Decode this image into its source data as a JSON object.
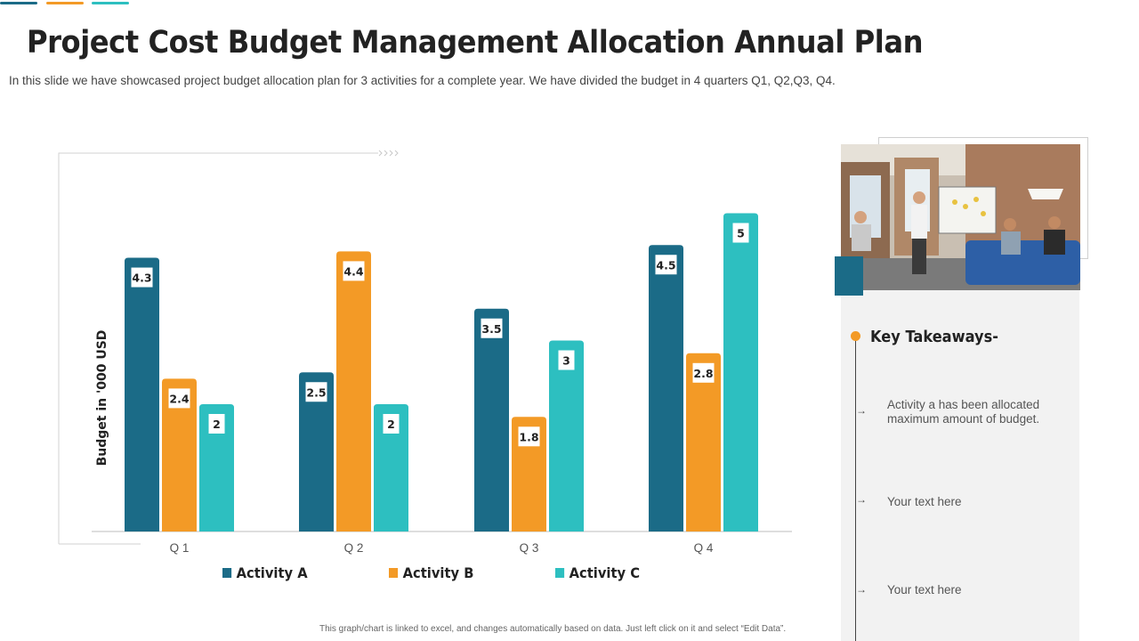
{
  "header": {
    "title": "Project Cost Budget Management Allocation Annual Plan",
    "subtitle": "In this slide we have showcased project budget allocation plan for 3 activities for a complete year. We have divided the budget in 4 quarters Q1, Q2,Q3, Q4."
  },
  "colors": {
    "activity_a": "#1b6b87",
    "activity_b": "#f39a26",
    "activity_c": "#2dbfc0",
    "accent": "#f39a26"
  },
  "chart_data": {
    "type": "bar",
    "title": "",
    "xlabel": "",
    "ylabel": "Budget in '000 USD",
    "ylim": [
      0,
      6
    ],
    "grid": false,
    "legend": "bottom",
    "categories": [
      "Q 1",
      "Q 2",
      "Q 3",
      "Q 4"
    ],
    "series": [
      {
        "name": "Activity A",
        "values": [
          4.3,
          2.5,
          3.5,
          4.5
        ]
      },
      {
        "name": "Activity B",
        "values": [
          2.4,
          4.4,
          1.8,
          2.8
        ]
      },
      {
        "name": "Activity C",
        "values": [
          2,
          2,
          3,
          5
        ]
      }
    ]
  },
  "legend": [
    {
      "label": "Activity A"
    },
    {
      "label": "Activity B"
    },
    {
      "label": "Activity C"
    }
  ],
  "footnote": "This graph/chart is linked to excel, and changes automatically based on data. Just left click on it and select “Edit Data”.",
  "takeaways": {
    "title": "Key Takeaways-",
    "items": [
      {
        "text": "Activity a has been allocated maximum  amount of budget."
      },
      {
        "text": "Your text here"
      },
      {
        "text": "Your text here"
      }
    ]
  }
}
